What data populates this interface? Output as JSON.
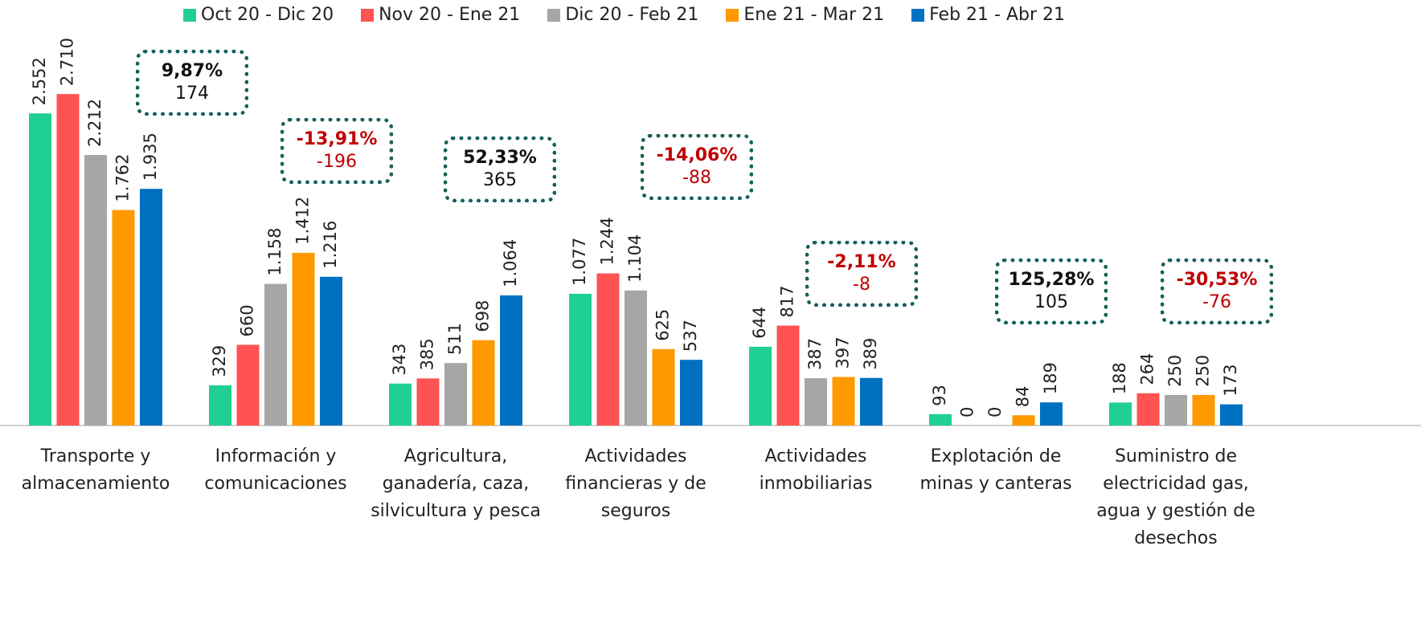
{
  "chart_data": {
    "type": "bar",
    "categories": [
      "Transporte y almacenamiento",
      "Información y comunicaciones",
      "Agricultura, ganadería, caza, silvicultura y pesca",
      "Actividades financieras y de seguros",
      "Actividades inmobiliarias",
      "Explotación de minas y canteras",
      "Suministro de electricidad gas, agua y gestión de desechos"
    ],
    "series": [
      {
        "name": "Oct 20 - Dic 20",
        "color": "#1fcf94",
        "values": [
          2552,
          329,
          343,
          1077,
          644,
          93,
          188
        ],
        "value_labels": [
          "2.552",
          "329",
          "343",
          "1.077",
          "644",
          "93",
          "188"
        ]
      },
      {
        "name": "Nov 20 - Ene 21",
        "color": "#ff5252",
        "values": [
          2710,
          660,
          385,
          1244,
          817,
          0,
          264
        ],
        "value_labels": [
          "2.710",
          "660",
          "385",
          "1.244",
          "817",
          "0",
          "264"
        ]
      },
      {
        "name": "Dic 20 - Feb 21",
        "color": "#a6a6a6",
        "values": [
          2212,
          1158,
          511,
          1104,
          387,
          0,
          250
        ],
        "value_labels": [
          "2.212",
          "1.158",
          "511",
          "1.104",
          "387",
          "0",
          "250"
        ]
      },
      {
        "name": "Ene 21 - Mar 21",
        "color": "#ff9900",
        "values": [
          1762,
          1412,
          698,
          625,
          397,
          84,
          250
        ],
        "value_labels": [
          "1.762",
          "1.412",
          "698",
          "625",
          "397",
          "84",
          "250"
        ]
      },
      {
        "name": "Feb 21 - Abr 21",
        "color": "#0070c0",
        "values": [
          1935,
          1216,
          1064,
          537,
          389,
          189,
          173
        ],
        "value_labels": [
          "1.935",
          "1.216",
          "1.064",
          "537",
          "389",
          "189",
          "173"
        ]
      }
    ],
    "annotations": [
      {
        "percent": "9,87%",
        "change": "174",
        "color": "#111111"
      },
      {
        "percent": "-13,91%",
        "change": "-196",
        "color": "#c00000"
      },
      {
        "percent": "52,33%",
        "change": "365",
        "color": "#111111"
      },
      {
        "percent": "-14,06%",
        "change": "-88",
        "color": "#c00000"
      },
      {
        "percent": "-2,11%",
        "change": "-8",
        "color": "#c00000"
      },
      {
        "percent": "125,28%",
        "change": "105",
        "color": "#111111"
      },
      {
        "percent": "-30,53%",
        "change": "-76",
        "color": "#c00000"
      }
    ],
    "ylim": [
      0,
      3000
    ]
  }
}
